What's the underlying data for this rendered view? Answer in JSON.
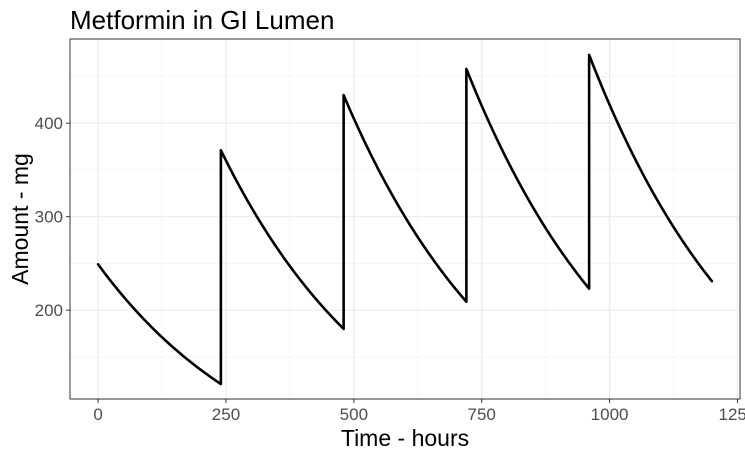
{
  "chart_data": {
    "type": "line",
    "title": "Metformin in GI Lumen",
    "xlabel": "Time - hours",
    "ylabel": "Amount - mg",
    "xlim": [
      -55,
      1255
    ],
    "ylim": [
      105,
      490
    ],
    "x_ticks": [
      0,
      250,
      500,
      750,
      1000,
      1250
    ],
    "x_tick_labels": [
      "0",
      "250",
      "500",
      "750",
      "1000",
      "1250"
    ],
    "y_ticks": [
      200,
      300,
      400
    ],
    "y_tick_labels": [
      "200",
      "300",
      "400"
    ],
    "grid": true,
    "legend": "none",
    "line_color": "#000000",
    "series": [
      {
        "x": [
          0,
          240,
          240,
          480,
          480,
          720,
          720,
          960,
          960,
          1200
        ],
        "y": [
          249,
          121,
          371,
          180,
          430,
          209,
          458,
          223,
          473,
          231
        ],
        "shape": [
          "decay",
          "jump",
          "decay",
          "jump",
          "decay",
          "jump",
          "decay",
          "jump",
          "decay"
        ]
      }
    ]
  }
}
